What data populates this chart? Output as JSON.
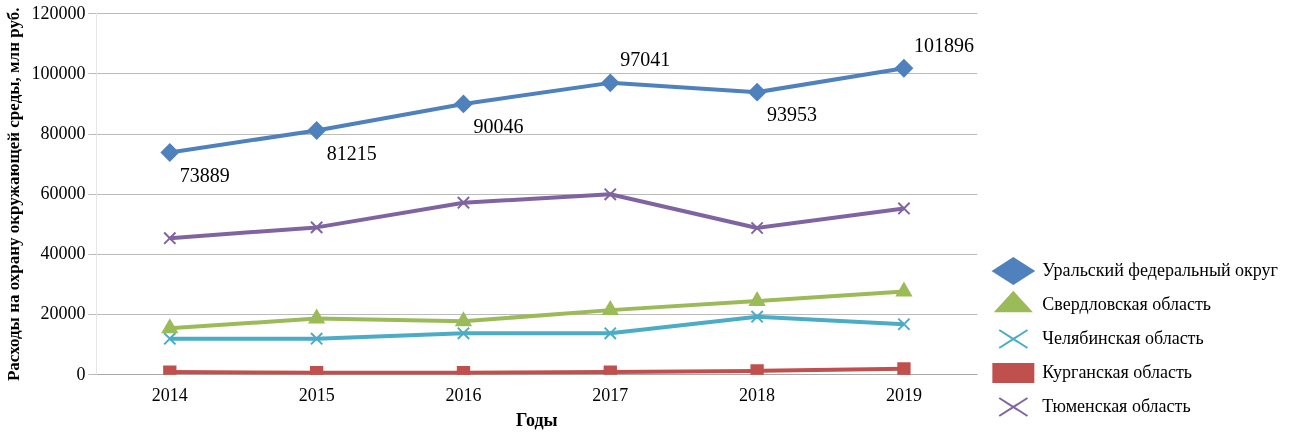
{
  "chart_data": {
    "type": "line",
    "xlabel": "Годы",
    "ylabel": "Расходы на охрану окружающей среды, млн руб.",
    "categories": [
      "2014",
      "2015",
      "2016",
      "2017",
      "2018",
      "2019"
    ],
    "ylim": [
      0,
      120000
    ],
    "yticks": [
      0,
      20000,
      40000,
      60000,
      80000,
      100000,
      120000
    ],
    "grid": "y",
    "legend": "right",
    "series": [
      {
        "name": "Уральский федеральный округ",
        "color": "#4f81bd",
        "marker": "diamond",
        "values": [
          73889,
          81215,
          90046,
          97041,
          93953,
          101896
        ],
        "value_labels": [
          "73889",
          "81215",
          "90046",
          "97041",
          "93953",
          "101896"
        ]
      },
      {
        "name": "Свердловская область",
        "color": "#9bbb59",
        "marker": "triangle",
        "values": [
          15500,
          18700,
          17800,
          21500,
          24500,
          27700
        ]
      },
      {
        "name": "Челябинская область",
        "color": "#4bacc6",
        "marker": "cross",
        "values": [
          12000,
          12000,
          13800,
          13800,
          19300,
          16800
        ]
      },
      {
        "name": "Курганская область",
        "color": "#c0504d",
        "marker": "square",
        "values": [
          900,
          700,
          700,
          900,
          1300,
          2000
        ]
      },
      {
        "name": "Тюменская область",
        "color": "#8064a2",
        "marker": "cross",
        "values": [
          45400,
          49000,
          57200,
          60000,
          48800,
          55300
        ]
      }
    ]
  }
}
